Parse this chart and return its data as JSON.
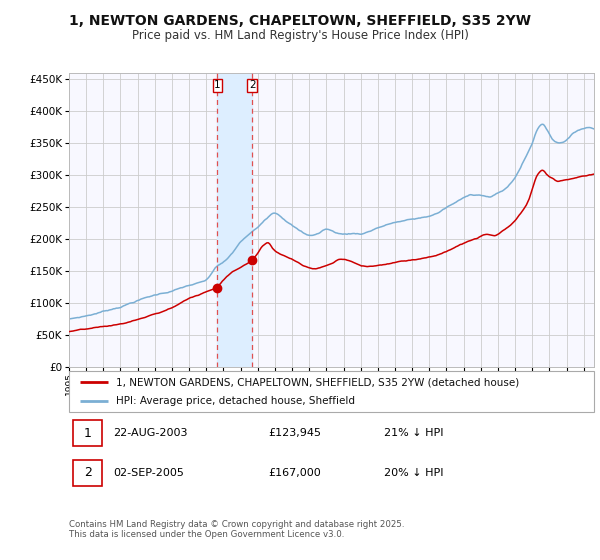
{
  "title1": "1, NEWTON GARDENS, CHAPELTOWN, SHEFFIELD, S35 2YW",
  "title2": "Price paid vs. HM Land Registry's House Price Index (HPI)",
  "legend_line1": "1, NEWTON GARDENS, CHAPELTOWN, SHEFFIELD, S35 2YW (detached house)",
  "legend_line2": "HPI: Average price, detached house, Sheffield",
  "transaction1_date": "22-AUG-2003",
  "transaction1_price": "£123,945",
  "transaction1_hpi": "21% ↓ HPI",
  "transaction2_date": "02-SEP-2005",
  "transaction2_price": "£167,000",
  "transaction2_hpi": "20% ↓ HPI",
  "footer": "Contains HM Land Registry data © Crown copyright and database right 2025.\nThis data is licensed under the Open Government Licence v3.0.",
  "hpi_color": "#7bafd4",
  "price_color": "#cc0000",
  "vline_color": "#e05050",
  "shade_color": "#ddeeff",
  "ylim": [
    0,
    460000
  ],
  "yticks": [
    0,
    50000,
    100000,
    150000,
    200000,
    250000,
    300000,
    350000,
    400000,
    450000
  ],
  "year_start": 1995,
  "year_end": 2025,
  "transaction1_year": 2003.65,
  "transaction2_year": 2005.67,
  "transaction1_val": 123945,
  "transaction2_val": 167000,
  "background_color": "#ffffff",
  "chart_bg": "#f8f8ff",
  "grid_color": "#cccccc"
}
